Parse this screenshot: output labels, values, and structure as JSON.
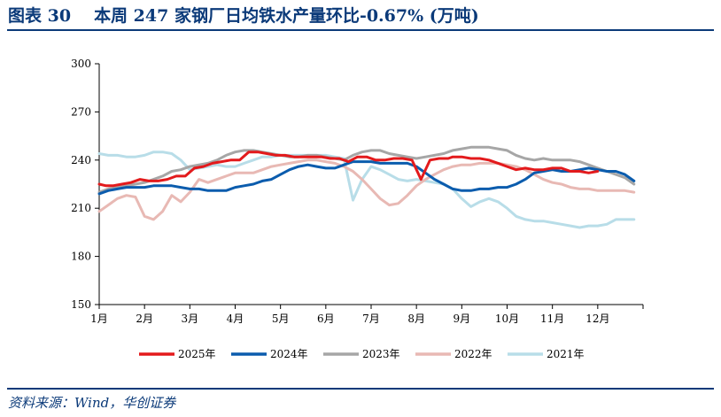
{
  "header": {
    "figure_no": "图表 30",
    "title": "本周 247 家钢厂日均铁水产量环比-0.67% (万吨)"
  },
  "footer": {
    "source": "资料来源：Wind，华创证券"
  },
  "chart_data": {
    "type": "line",
    "title": "本周 247 家钢厂日均铁水产量环比-0.67% (万吨)",
    "xlabel": "",
    "ylabel": "",
    "x_ticks": [
      "1月",
      "2月",
      "3月",
      "4月",
      "5月",
      "6月",
      "7月",
      "8月",
      "9月",
      "10月",
      "11月",
      "12月"
    ],
    "y_ticks": [
      150,
      180,
      210,
      240,
      270,
      300
    ],
    "ylim": [
      150,
      300
    ],
    "xlim": [
      1,
      13
    ],
    "grid": false,
    "legend_position": "bottom",
    "series": [
      {
        "name": "2025年",
        "color": "#e31a1c",
        "x": [
          1.0,
          1.15,
          1.3,
          1.5,
          1.7,
          1.9,
          2.1,
          2.3,
          2.5,
          2.7,
          2.9,
          3.1,
          3.3,
          3.5,
          3.7,
          3.9,
          4.1,
          4.3,
          4.5,
          4.7,
          4.9,
          5.1,
          5.3,
          5.5,
          5.7,
          5.9,
          6.1,
          6.3,
          6.5,
          6.7,
          6.9,
          7.1,
          7.3,
          7.5,
          7.7,
          7.9,
          8.1,
          8.3,
          8.5,
          8.7,
          8.8,
          9.0,
          9.2,
          9.4,
          9.6,
          9.8,
          10.0,
          10.2,
          10.4,
          10.6,
          10.8,
          11.0,
          11.2,
          11.4,
          11.6,
          11.8,
          12.0
        ],
        "values": [
          225,
          224,
          224,
          225,
          226,
          228,
          227,
          227,
          228,
          230,
          230,
          235,
          236,
          238,
          239,
          240,
          240,
          245,
          245,
          244,
          243,
          243,
          242,
          242,
          242,
          242,
          241,
          241,
          239,
          242,
          242,
          240,
          240,
          241,
          241,
          240,
          228,
          240,
          241,
          241,
          242,
          242,
          241,
          241,
          240,
          238,
          236,
          234,
          235,
          234,
          234,
          235,
          235,
          233,
          233,
          232,
          233
        ]
      },
      {
        "name": "2024年",
        "color": "#0b5cad",
        "x": [
          1.0,
          1.2,
          1.4,
          1.6,
          1.8,
          2.0,
          2.2,
          2.4,
          2.6,
          2.8,
          3.0,
          3.2,
          3.4,
          3.6,
          3.8,
          4.0,
          4.2,
          4.4,
          4.6,
          4.8,
          5.0,
          5.2,
          5.4,
          5.6,
          5.8,
          6.0,
          6.2,
          6.4,
          6.6,
          6.8,
          7.0,
          7.2,
          7.4,
          7.6,
          7.8,
          8.0,
          8.2,
          8.4,
          8.6,
          8.8,
          9.0,
          9.2,
          9.4,
          9.6,
          9.8,
          10.0,
          10.2,
          10.4,
          10.6,
          10.8,
          11.0,
          11.2,
          11.4,
          11.6,
          11.8,
          12.0,
          12.2,
          12.4,
          12.6,
          12.8
        ],
        "values": [
          219,
          221,
          222,
          223,
          223,
          223,
          224,
          224,
          224,
          223,
          222,
          222,
          221,
          221,
          221,
          223,
          224,
          225,
          227,
          228,
          231,
          234,
          236,
          237,
          236,
          235,
          235,
          237,
          239,
          239,
          239,
          238,
          238,
          238,
          238,
          236,
          232,
          228,
          225,
          222,
          221,
          221,
          222,
          222,
          223,
          223,
          225,
          228,
          232,
          233,
          234,
          233,
          233,
          234,
          235,
          234,
          233,
          233,
          231,
          227
        ]
      },
      {
        "name": "2023年",
        "color": "#a6a6a6",
        "x": [
          1.0,
          1.2,
          1.4,
          1.6,
          1.8,
          2.0,
          2.2,
          2.4,
          2.6,
          2.8,
          3.0,
          3.2,
          3.4,
          3.6,
          3.8,
          4.0,
          4.2,
          4.4,
          4.6,
          4.8,
          5.0,
          5.2,
          5.4,
          5.6,
          5.8,
          6.0,
          6.2,
          6.4,
          6.6,
          6.8,
          7.0,
          7.2,
          7.4,
          7.6,
          7.8,
          8.0,
          8.2,
          8.4,
          8.6,
          8.8,
          9.0,
          9.2,
          9.4,
          9.6,
          9.8,
          10.0,
          10.2,
          10.4,
          10.6,
          10.8,
          11.0,
          11.2,
          11.4,
          11.6,
          11.8,
          12.0,
          12.2,
          12.4,
          12.6,
          12.8
        ],
        "values": [
          220,
          222,
          223,
          224,
          225,
          226,
          228,
          230,
          233,
          234,
          236,
          237,
          238,
          240,
          243,
          245,
          246,
          246,
          245,
          244,
          243,
          242,
          242,
          243,
          243,
          242,
          241,
          240,
          243,
          245,
          246,
          246,
          244,
          243,
          242,
          241,
          242,
          243,
          244,
          246,
          247,
          248,
          248,
          248,
          247,
          246,
          243,
          241,
          240,
          241,
          240,
          240,
          240,
          239,
          237,
          235,
          233,
          231,
          229,
          225
        ]
      },
      {
        "name": "2022年",
        "color": "#e8b9b4",
        "x": [
          1.0,
          1.2,
          1.4,
          1.6,
          1.8,
          2.0,
          2.2,
          2.4,
          2.6,
          2.8,
          3.0,
          3.2,
          3.4,
          3.6,
          3.8,
          4.0,
          4.2,
          4.4,
          4.6,
          4.8,
          5.0,
          5.2,
          5.4,
          5.6,
          5.8,
          6.0,
          6.2,
          6.4,
          6.6,
          6.8,
          7.0,
          7.2,
          7.4,
          7.6,
          7.8,
          8.0,
          8.2,
          8.4,
          8.6,
          8.8,
          9.0,
          9.2,
          9.4,
          9.6,
          9.8,
          10.0,
          10.2,
          10.4,
          10.6,
          10.8,
          11.0,
          11.2,
          11.4,
          11.6,
          11.8,
          12.0,
          12.2,
          12.4,
          12.6,
          12.8
        ],
        "values": [
          208,
          212,
          216,
          218,
          217,
          205,
          203,
          208,
          218,
          214,
          220,
          228,
          226,
          228,
          230,
          232,
          232,
          232,
          234,
          236,
          237,
          238,
          239,
          240,
          240,
          239,
          238,
          236,
          233,
          228,
          222,
          216,
          212,
          213,
          218,
          224,
          228,
          231,
          234,
          236,
          237,
          237,
          238,
          238,
          238,
          237,
          236,
          234,
          231,
          228,
          226,
          225,
          223,
          222,
          222,
          221,
          221,
          221,
          221,
          220
        ]
      },
      {
        "name": "2021年",
        "color": "#b8dde8",
        "x": [
          1.0,
          1.2,
          1.4,
          1.6,
          1.8,
          2.0,
          2.2,
          2.4,
          2.6,
          2.8,
          3.0,
          3.2,
          3.4,
          3.6,
          3.8,
          4.0,
          4.2,
          4.4,
          4.6,
          4.8,
          5.0,
          5.2,
          5.4,
          5.6,
          5.8,
          6.0,
          6.2,
          6.4,
          6.6,
          6.8,
          7.0,
          7.2,
          7.4,
          7.6,
          7.8,
          8.0,
          8.2,
          8.4,
          8.6,
          8.8,
          9.0,
          9.2,
          9.4,
          9.6,
          9.8,
          10.0,
          10.2,
          10.4,
          10.6,
          10.8,
          11.0,
          11.2,
          11.4,
          11.6,
          11.8,
          12.0,
          12.2,
          12.4,
          12.6,
          12.8
        ],
        "values": [
          244,
          243,
          243,
          242,
          242,
          243,
          245,
          245,
          244,
          240,
          234,
          235,
          236,
          237,
          236,
          236,
          238,
          240,
          242,
          242,
          243,
          243,
          243,
          243,
          243,
          243,
          242,
          241,
          215,
          228,
          236,
          234,
          231,
          228,
          227,
          228,
          227,
          226,
          225,
          222,
          216,
          211,
          214,
          216,
          214,
          210,
          205,
          203,
          202,
          202,
          201,
          200,
          199,
          198,
          199,
          199,
          200,
          203,
          203,
          203
        ]
      }
    ]
  }
}
